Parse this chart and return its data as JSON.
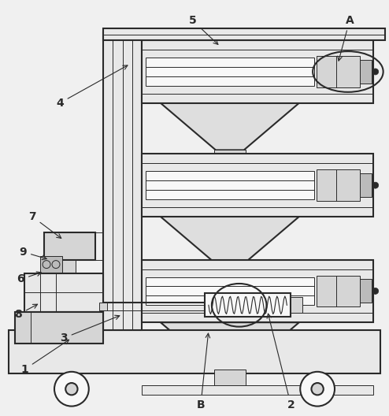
{
  "bg_color": "#f0f0f0",
  "line_color": "#2a2a2a",
  "fill_light": "#e8e8e8",
  "fill_mid": "#d5d5d5",
  "fill_dark": "#bbbbbb",
  "lw_main": 1.5,
  "lw_thin": 0.7,
  "lw_label": 0.7
}
